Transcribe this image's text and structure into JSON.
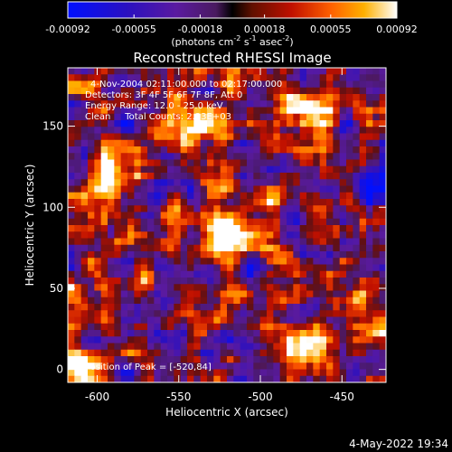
{
  "colorbar": {
    "ticks": [
      "-0.00092",
      "-0.00055",
      "-0.00018",
      "0.00018",
      "0.00055",
      "0.00092"
    ],
    "label_main": "(photons cm",
    "label_exp1": "-2",
    "label_mid1": " s",
    "label_exp2": "-1",
    "label_mid2": " asec",
    "label_exp3": "-2",
    "label_end": ")",
    "range": [
      -0.00092,
      0.00092
    ]
  },
  "chart_data": {
    "type": "heatmap",
    "title": "Reconstructed RHESSI Image",
    "xlabel": "Heliocentric X (arcsec)",
    "ylabel": "Heliocentric Y (arcsec)",
    "xlim": [
      -618,
      -423
    ],
    "ylim": [
      -8,
      186
    ],
    "x_ticks": [
      -600,
      -550,
      -500,
      -450
    ],
    "y_ticks": [
      0,
      50,
      100,
      150
    ],
    "annotations": [
      "4-Nov-2004 02:11:00.000 to 02:17:00.000",
      "Detectors: 3F 4F 5F 6F 7F 8F, Att 0",
      "Energy Range: 12.0 - 25.0 keV",
      "Clean     Total Counts: 2.33E+03"
    ],
    "peak_label": "Position of Peak = [-520,84]",
    "peak": [
      -520,
      84
    ],
    "bright_sources": [
      {
        "x": -520,
        "y": 84,
        "intensity": 1.0
      },
      {
        "x": -466,
        "y": 156,
        "intensity": 0.75
      },
      {
        "x": -470,
        "y": 14,
        "intensity": 0.8
      },
      {
        "x": -612,
        "y": 0,
        "intensity": 0.7
      },
      {
        "x": -595,
        "y": 120,
        "intensity": 0.55
      },
      {
        "x": -545,
        "y": 150,
        "intensity": 0.5
      }
    ]
  },
  "footer": {
    "timestamp": "4-May-2022 19:34"
  }
}
